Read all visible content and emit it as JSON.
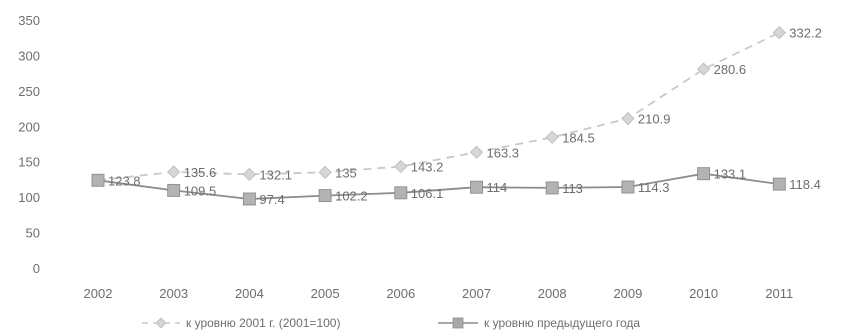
{
  "chart_data": {
    "type": "line",
    "title": "",
    "xlabel": "",
    "ylabel": "",
    "ylim": [
      0,
      350
    ],
    "yticks": [
      "0",
      "50",
      "100",
      "150",
      "200",
      "250",
      "300",
      "350"
    ],
    "categories": [
      "2002",
      "2003",
      "2004",
      "2005",
      "2006",
      "2007",
      "2008",
      "2009",
      "2010",
      "2011"
    ],
    "grid": false,
    "legend_position": "bottom",
    "series": [
      {
        "name": "к уровню 2001 г. (2001=100)",
        "values": [
          123.8,
          135.6,
          132.1,
          135,
          143.2,
          163.3,
          184.5,
          210.9,
          280.6,
          332.2
        ],
        "labels": [
          "123.8",
          "135.6",
          "132.1",
          "135",
          "143.2",
          "163.3",
          "184.5",
          "210.9",
          "280.6",
          "332.2"
        ],
        "color": "#c9c9c9",
        "style": "dashed",
        "marker": "diamond"
      },
      {
        "name": "к уровню предыдущего года",
        "values": [
          123.8,
          109.5,
          97.4,
          102.2,
          106.1,
          114,
          113,
          114.3,
          133.1,
          118.4
        ],
        "labels": [
          "",
          "109.5",
          "97.4",
          "102.2",
          "106.1",
          "114",
          "113",
          "114.3",
          "133.1",
          "118.4"
        ],
        "color": "#8c8c8c",
        "style": "solid",
        "marker": "square"
      }
    ]
  }
}
